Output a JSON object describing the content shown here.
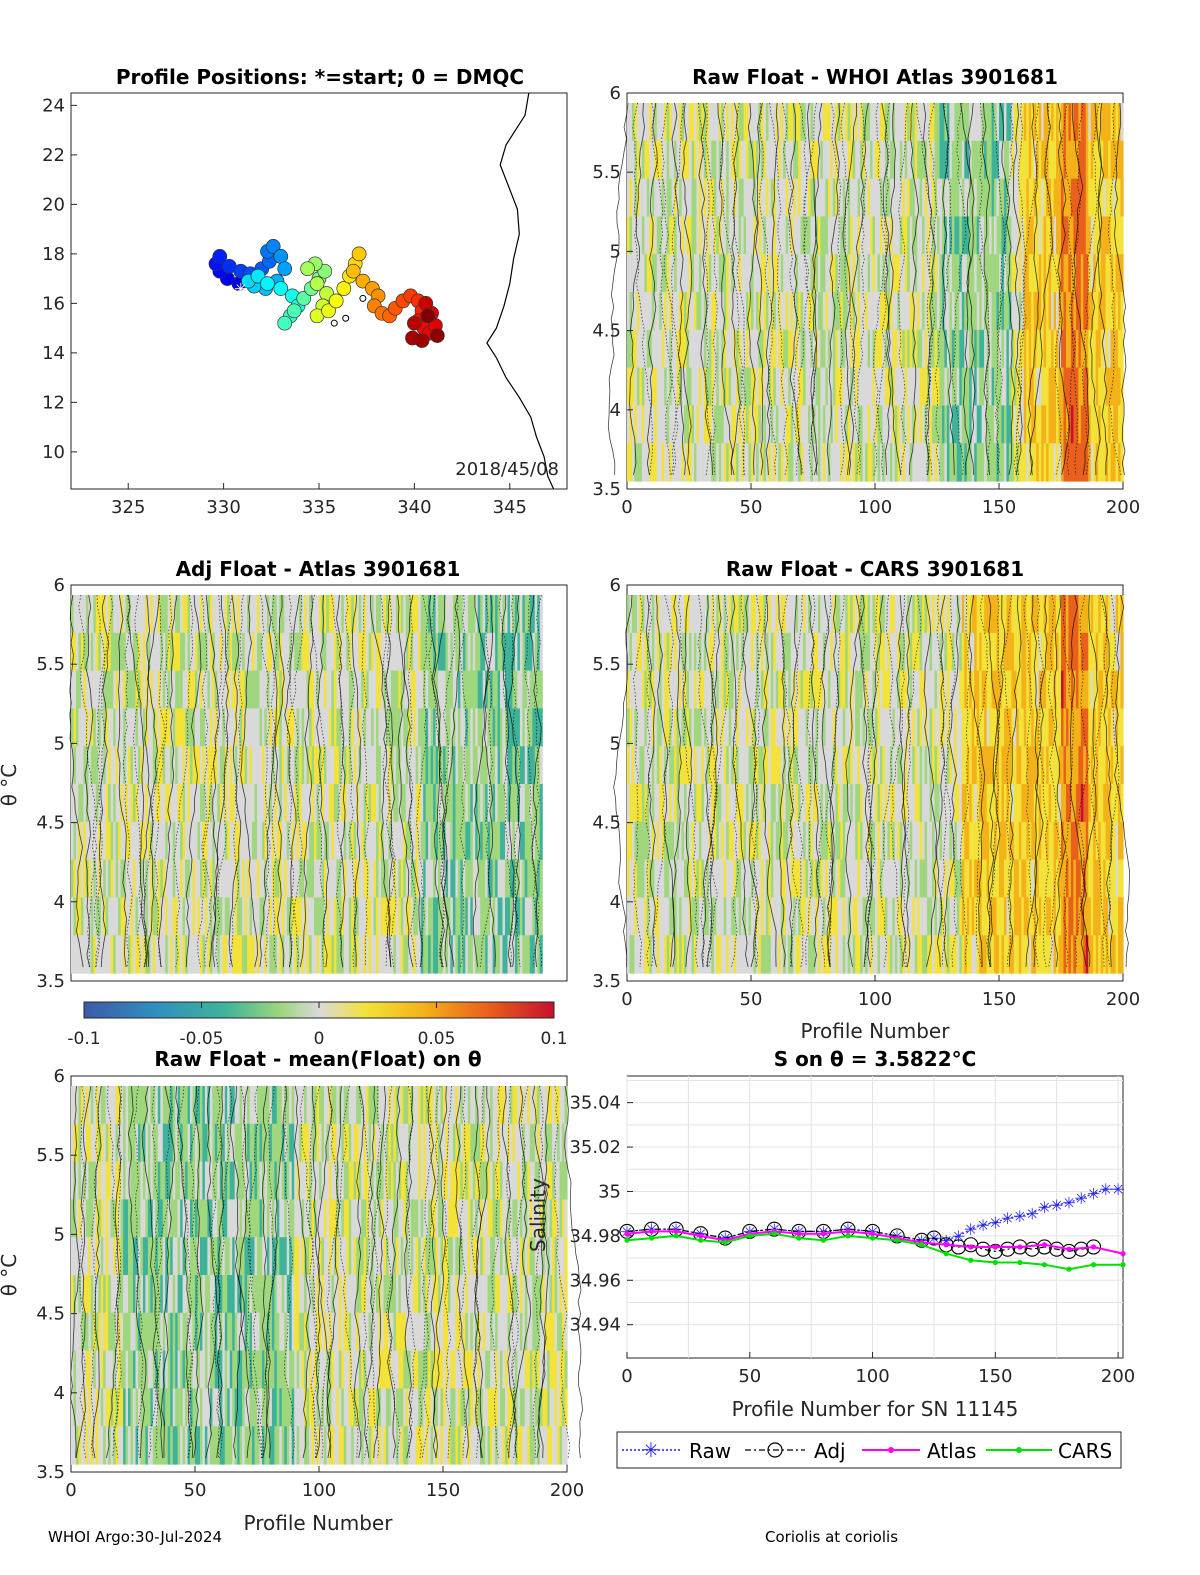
{
  "page": {
    "footer_left": "WHOI Argo:30-Jul-2024",
    "footer_right": "Coriolis at coriolis"
  },
  "colors": {
    "raw": "#1f1fff",
    "adj": "#000000",
    "atlas": "#ff00ff",
    "cars": "#00e000",
    "neutral_fill": "#d9d9d9",
    "colorbar": [
      "#3d5aa6",
      "#2f8fbf",
      "#3fb39a",
      "#9fd67e",
      "#d9d9d9",
      "#f3e23a",
      "#f4b21a",
      "#e8601c",
      "#c8102e"
    ]
  },
  "colorbar": {
    "ticks": [
      "-0.1",
      "-0.05",
      "0",
      "0.05",
      "0.1"
    ],
    "range": [
      -0.1,
      0.1
    ]
  },
  "chart_data": [
    {
      "id": "positions",
      "type": "scatter",
      "title": "Profile Positions: *=start; 0 = DMQC",
      "xlim": [
        322,
        348
      ],
      "ylim": [
        8.5,
        24.5
      ],
      "xticks": [
        "325",
        "330",
        "335",
        "340",
        "345"
      ],
      "yticks": [
        "10",
        "12",
        "14",
        "16",
        "18",
        "20",
        "22",
        "24"
      ],
      "date_label": "2018/45/08",
      "colormap": "jet",
      "track": [
        [
          330.8,
          16.8
        ],
        [
          330.2,
          17.0
        ],
        [
          329.8,
          17.3
        ],
        [
          329.6,
          17.6
        ],
        [
          329.8,
          17.9
        ],
        [
          330.3,
          17.5
        ],
        [
          330.9,
          17.3
        ],
        [
          331.4,
          17.2
        ],
        [
          332.0,
          17.4
        ],
        [
          332.4,
          17.7
        ],
        [
          332.3,
          18.1
        ],
        [
          332.6,
          18.3
        ],
        [
          333.0,
          17.9
        ],
        [
          333.2,
          17.4
        ],
        [
          332.8,
          16.9
        ],
        [
          332.2,
          16.6
        ],
        [
          331.6,
          16.7
        ],
        [
          331.3,
          16.9
        ],
        [
          331.8,
          17.1
        ],
        [
          332.3,
          16.8
        ],
        [
          333.0,
          16.6
        ],
        [
          333.6,
          16.3
        ],
        [
          333.9,
          15.9
        ],
        [
          333.5,
          15.5
        ],
        [
          333.2,
          15.2
        ],
        [
          333.7,
          15.7
        ],
        [
          334.2,
          16.2
        ],
        [
          334.6,
          16.6
        ],
        [
          335.0,
          17.0
        ],
        [
          335.3,
          17.3
        ],
        [
          334.8,
          17.6
        ],
        [
          334.4,
          17.4
        ],
        [
          334.9,
          16.8
        ],
        [
          335.4,
          16.4
        ],
        [
          335.2,
          15.9
        ],
        [
          334.9,
          15.5
        ],
        [
          335.5,
          15.7
        ],
        [
          335.9,
          16.1
        ],
        [
          336.3,
          16.6
        ],
        [
          336.6,
          17.1
        ],
        [
          336.9,
          17.6
        ],
        [
          337.1,
          18.0
        ],
        [
          336.8,
          17.3
        ],
        [
          337.3,
          16.9
        ],
        [
          337.8,
          16.6
        ],
        [
          338.1,
          16.3
        ],
        [
          337.9,
          15.9
        ],
        [
          338.3,
          15.6
        ],
        [
          338.7,
          15.5
        ],
        [
          339.0,
          15.8
        ],
        [
          339.4,
          16.1
        ],
        [
          339.8,
          16.3
        ],
        [
          340.2,
          16.1
        ],
        [
          340.4,
          15.7
        ],
        [
          340.2,
          15.3
        ],
        [
          340.5,
          15.0
        ],
        [
          340.8,
          14.8
        ],
        [
          341.1,
          15.1
        ],
        [
          340.9,
          15.6
        ],
        [
          340.6,
          16.0
        ],
        [
          340.0,
          15.2
        ],
        [
          339.9,
          14.6
        ],
        [
          340.4,
          14.5
        ],
        [
          341.2,
          14.7
        ],
        [
          340.7,
          15.5
        ]
      ],
      "start": [
        330.9,
        16.6
      ]
    },
    {
      "id": "raw_atlas",
      "type": "heatmap",
      "title": "Raw Float - WHOI Atlas  3901681",
      "xlim": [
        0,
        200
      ],
      "ylim": [
        3.5,
        6
      ],
      "xticks": [
        "0",
        "50",
        "100",
        "150",
        "200"
      ],
      "yticks": [
        "3.5",
        "4",
        "4.5",
        "5",
        "5.5",
        "6"
      ],
      "profiles": 200,
      "warm_after": 155,
      "hot_band": [
        175,
        185
      ]
    },
    {
      "id": "adj_atlas",
      "type": "heatmap",
      "title": "Adj Float - Atlas  3901681",
      "xlim": [
        0,
        200
      ],
      "ylim": [
        3.5,
        6
      ],
      "xticks": [],
      "yticks": [
        "3.5",
        "4",
        "4.5",
        "5",
        "5.5",
        "6"
      ],
      "ylabel": "θ °C",
      "profiles": 190
    },
    {
      "id": "raw_cars",
      "type": "heatmap",
      "title": "Raw Float - CARS  3901681",
      "xlim": [
        0,
        200
      ],
      "ylim": [
        3.5,
        6
      ],
      "xticks": [
        "0",
        "50",
        "100",
        "150",
        "200"
      ],
      "yticks": [
        "3.5",
        "4",
        "4.5",
        "5",
        "5.5",
        "6"
      ],
      "xlabel": "Profile Number",
      "profiles": 200,
      "warm_after": 135,
      "hot_band": [
        175,
        185
      ]
    },
    {
      "id": "raw_mean",
      "type": "heatmap",
      "title": "Raw Float - mean(Float) on θ",
      "xlim": [
        0,
        200
      ],
      "ylim": [
        3.5,
        6
      ],
      "xticks": [
        "0",
        "50",
        "100",
        "150",
        "200"
      ],
      "yticks": [
        "3.5",
        "4",
        "4.5",
        "5",
        "5.5",
        "6"
      ],
      "xlabel": "Profile Number",
      "ylabel": "θ °C",
      "profiles": 200
    },
    {
      "id": "salinity",
      "type": "line",
      "title": "S on θ = 3.5822°C",
      "xlabel": "Profile Number for SN 11145",
      "ylabel": "Salinity",
      "xlim": [
        0,
        202
      ],
      "ylim": [
        34.925,
        35.052
      ],
      "xticks": [
        "0",
        "50",
        "100",
        "150",
        "200"
      ],
      "yticks": [
        "34.94",
        "34.96",
        "34.98",
        "35",
        "35.02",
        "35.04"
      ],
      "legend": [
        "Raw",
        "Adj",
        "Atlas",
        "CARS"
      ],
      "legend_position": "below",
      "series": [
        {
          "name": "Raw",
          "x": [
            0,
            10,
            20,
            30,
            40,
            50,
            60,
            70,
            80,
            90,
            100,
            110,
            120,
            125,
            130,
            135,
            140,
            145,
            150,
            155,
            160,
            165,
            170,
            175,
            180,
            185,
            190,
            195,
            200
          ],
          "y": [
            34.982,
            34.983,
            34.983,
            34.981,
            34.979,
            34.982,
            34.983,
            34.982,
            34.982,
            34.983,
            34.982,
            34.98,
            34.978,
            34.979,
            34.978,
            34.98,
            34.983,
            34.985,
            34.986,
            34.988,
            34.989,
            34.99,
            34.993,
            34.994,
            34.995,
            34.997,
            34.999,
            35.001,
            35.001
          ]
        },
        {
          "name": "Adj",
          "x": [
            0,
            10,
            20,
            30,
            40,
            50,
            60,
            70,
            80,
            90,
            100,
            110,
            120,
            125,
            130,
            135,
            140,
            145,
            150,
            155,
            160,
            165,
            170,
            175,
            180,
            185,
            190
          ],
          "y": [
            34.982,
            34.983,
            34.983,
            34.981,
            34.979,
            34.982,
            34.983,
            34.982,
            34.982,
            34.983,
            34.982,
            34.98,
            34.978,
            34.979,
            34.976,
            34.975,
            34.976,
            34.974,
            34.973,
            34.974,
            34.975,
            34.974,
            34.975,
            34.974,
            34.973,
            34.974,
            34.975
          ]
        },
        {
          "name": "Atlas",
          "x": [
            0,
            10,
            20,
            30,
            40,
            50,
            60,
            70,
            80,
            90,
            100,
            110,
            120,
            130,
            140,
            150,
            160,
            170,
            180,
            190,
            202
          ],
          "y": [
            34.981,
            34.982,
            34.982,
            34.98,
            34.978,
            34.981,
            34.982,
            34.981,
            34.981,
            34.982,
            34.981,
            34.979,
            34.977,
            34.976,
            34.975,
            34.975,
            34.975,
            34.976,
            34.974,
            34.975,
            34.972
          ]
        },
        {
          "name": "CARS",
          "x": [
            0,
            10,
            20,
            30,
            40,
            50,
            60,
            70,
            80,
            90,
            100,
            110,
            120,
            130,
            140,
            150,
            160,
            170,
            180,
            190,
            202
          ],
          "y": [
            34.978,
            34.979,
            34.98,
            34.978,
            34.977,
            34.98,
            34.981,
            34.979,
            34.978,
            34.98,
            34.979,
            34.978,
            34.976,
            34.972,
            34.969,
            34.968,
            34.968,
            34.967,
            34.965,
            34.967,
            34.967
          ]
        }
      ]
    }
  ]
}
